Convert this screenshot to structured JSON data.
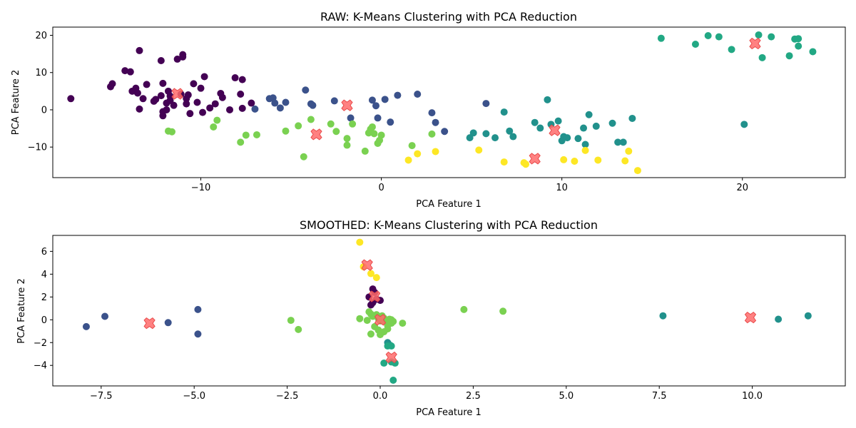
{
  "chart_data": [
    {
      "type": "scatter",
      "title": "RAW: K-Means Clustering with PCA Reduction",
      "xlabel": "PCA Feature 1",
      "ylabel": "PCA Feature 2",
      "xlim": [
        -18.2,
        25.7
      ],
      "ylim": [
        -18.2,
        22.2
      ],
      "xticks": [
        -10,
        0,
        10,
        20
      ],
      "xtick_labels": [
        "−10",
        "0",
        "10",
        "20"
      ],
      "yticks": [
        -10,
        0,
        10,
        20
      ],
      "ytick_labels": [
        "−10",
        "0",
        "10",
        "20"
      ],
      "grid": false,
      "series": [
        {
          "color": "#440154",
          "points": [
            [
              -17.2,
              3.0
            ],
            [
              -15.0,
              6.2
            ],
            [
              -14.9,
              7.0
            ],
            [
              -14.2,
              10.5
            ],
            [
              -13.9,
              10.2
            ],
            [
              -13.8,
              5.0
            ],
            [
              -13.6,
              5.8
            ],
            [
              -13.5,
              4.5
            ],
            [
              -13.4,
              0.2
            ],
            [
              -13.4,
              15.9
            ],
            [
              -13.2,
              3.0
            ],
            [
              -13.0,
              6.8
            ],
            [
              -12.6,
              2.3
            ],
            [
              -12.5,
              2.8
            ],
            [
              -12.2,
              3.8
            ],
            [
              -12.2,
              13.2
            ],
            [
              -12.1,
              -1.6
            ],
            [
              -12.1,
              -0.5
            ],
            [
              -12.1,
              7.1
            ],
            [
              -11.9,
              1.8
            ],
            [
              -11.9,
              0.0
            ],
            [
              -11.8,
              5.0
            ],
            [
              -11.7,
              3.7
            ],
            [
              -11.7,
              2.5
            ],
            [
              -11.5,
              1.2
            ],
            [
              -11.3,
              13.6
            ],
            [
              -11.1,
              4.2
            ],
            [
              -11.0,
              14.2
            ],
            [
              -11.0,
              14.8
            ],
            [
              -10.8,
              1.6
            ],
            [
              -10.8,
              3.0
            ],
            [
              -10.7,
              4.0
            ],
            [
              -10.6,
              -1.0
            ],
            [
              -10.4,
              7.0
            ],
            [
              -10.2,
              2.0
            ],
            [
              -10.0,
              5.8
            ],
            [
              -9.9,
              -0.7
            ],
            [
              -9.8,
              8.9
            ],
            [
              -9.5,
              0.5
            ],
            [
              -9.2,
              1.6
            ],
            [
              -8.9,
              4.4
            ],
            [
              -8.8,
              3.3
            ],
            [
              -8.4,
              0.0
            ],
            [
              -8.1,
              8.6
            ],
            [
              -7.8,
              4.2
            ],
            [
              -7.7,
              8.1
            ],
            [
              -7.7,
              0.4
            ],
            [
              -7.2,
              1.8
            ]
          ]
        },
        {
          "color": "#3b528b",
          "points": [
            [
              -7.0,
              0.2
            ],
            [
              -6.2,
              3.0
            ],
            [
              -6.0,
              3.2
            ],
            [
              -5.9,
              1.8
            ],
            [
              -5.6,
              0.5
            ],
            [
              -5.3,
              2.0
            ],
            [
              -4.2,
              5.3
            ],
            [
              -3.9,
              1.6
            ],
            [
              -3.8,
              1.2
            ],
            [
              -2.6,
              2.4
            ],
            [
              -1.7,
              -2.2
            ],
            [
              -0.5,
              2.6
            ],
            [
              -0.3,
              1.1
            ],
            [
              -0.2,
              -2.2
            ],
            [
              0.2,
              2.8
            ],
            [
              0.5,
              -3.3
            ],
            [
              0.9,
              3.9
            ],
            [
              2.0,
              4.2
            ],
            [
              2.8,
              -0.8
            ],
            [
              3.0,
              -3.4
            ],
            [
              3.5,
              -5.8
            ],
            [
              5.8,
              1.7
            ]
          ]
        },
        {
          "color": "#21918c",
          "points": [
            [
              4.9,
              -7.5
            ],
            [
              5.1,
              -6.2
            ],
            [
              5.8,
              -6.4
            ],
            [
              6.3,
              -7.5
            ],
            [
              6.8,
              -0.6
            ],
            [
              7.1,
              -5.7
            ],
            [
              7.3,
              -7.2
            ],
            [
              8.5,
              -3.4
            ],
            [
              8.8,
              -4.9
            ],
            [
              9.2,
              2.7
            ],
            [
              9.4,
              -3.9
            ],
            [
              9.8,
              -3.0
            ],
            [
              10.0,
              -8.3
            ],
            [
              10.1,
              -7.2
            ],
            [
              10.3,
              -7.5
            ],
            [
              10.9,
              -7.7
            ],
            [
              11.2,
              -4.9
            ],
            [
              11.3,
              -9.3
            ],
            [
              11.5,
              -1.3
            ],
            [
              11.9,
              -4.4
            ],
            [
              12.8,
              -3.6
            ],
            [
              13.1,
              -8.7
            ],
            [
              13.4,
              -8.7
            ],
            [
              13.9,
              -2.3
            ],
            [
              20.1,
              -3.9
            ]
          ]
        },
        {
          "color": "#22a884",
          "points": [
            [
              15.5,
              19.2
            ],
            [
              17.4,
              17.6
            ],
            [
              18.1,
              19.9
            ],
            [
              18.7,
              19.6
            ],
            [
              19.4,
              16.2
            ],
            [
              20.9,
              20.1
            ],
            [
              21.1,
              14.0
            ],
            [
              21.6,
              19.6
            ],
            [
              22.6,
              14.5
            ],
            [
              22.9,
              19.0
            ],
            [
              23.1,
              17.1
            ],
            [
              23.1,
              19.1
            ],
            [
              23.9,
              15.6
            ]
          ]
        },
        {
          "color": "#7ad151",
          "points": [
            [
              -11.8,
              -5.7
            ],
            [
              -11.6,
              -5.9
            ],
            [
              -9.3,
              -4.6
            ],
            [
              -9.1,
              -2.8
            ],
            [
              -7.8,
              -8.7
            ],
            [
              -7.5,
              -6.8
            ],
            [
              -6.9,
              -6.7
            ],
            [
              -5.3,
              -5.7
            ],
            [
              -4.6,
              -4.3
            ],
            [
              -4.3,
              -12.6
            ],
            [
              -3.9,
              -2.6
            ],
            [
              -2.8,
              -3.8
            ],
            [
              -2.5,
              -5.8
            ],
            [
              -1.9,
              -7.7
            ],
            [
              -1.9,
              -9.5
            ],
            [
              -1.6,
              -3.8
            ],
            [
              -0.9,
              -11.1
            ],
            [
              -0.7,
              -6.2
            ],
            [
              -0.6,
              -5.2
            ],
            [
              -0.5,
              -4.6
            ],
            [
              -0.4,
              -6.4
            ],
            [
              -0.2,
              -9.0
            ],
            [
              -0.1,
              -8.2
            ],
            [
              0.0,
              -6.8
            ],
            [
              1.7,
              -9.6
            ],
            [
              2.8,
              -6.5
            ]
          ]
        },
        {
          "color": "#fde725",
          "points": [
            [
              1.5,
              -13.5
            ],
            [
              2.0,
              -11.8
            ],
            [
              3.0,
              -11.2
            ],
            [
              5.4,
              -10.8
            ],
            [
              6.8,
              -14.0
            ],
            [
              7.9,
              -14.2
            ],
            [
              8.0,
              -14.6
            ],
            [
              10.1,
              -13.4
            ],
            [
              10.7,
              -13.8
            ],
            [
              11.3,
              -10.9
            ],
            [
              12.0,
              -13.5
            ],
            [
              13.5,
              -13.7
            ],
            [
              13.7,
              -11.1
            ],
            [
              14.2,
              -16.3
            ]
          ]
        }
      ],
      "centroids": {
        "color": "#ff6b6b",
        "marker": "X",
        "points": [
          [
            -11.3,
            4.3
          ],
          [
            -1.9,
            1.2
          ],
          [
            9.6,
            -5.5
          ],
          [
            20.7,
            17.8
          ],
          [
            -3.6,
            -6.6
          ],
          [
            8.5,
            -13.1
          ]
        ]
      }
    },
    {
      "type": "scatter",
      "title": "SMOOTHED: K-Means Clustering with PCA Reduction",
      "xlabel": "PCA Feature 1",
      "ylabel": "PCA Feature 2",
      "xlim": [
        -8.8,
        12.5
      ],
      "ylim": [
        -5.8,
        7.4
      ],
      "xticks": [
        -7.5,
        -5.0,
        -2.5,
        0.0,
        2.5,
        5.0,
        7.5,
        10.0
      ],
      "xtick_labels": [
        "−7.5",
        "−5.0",
        "−2.5",
        "0.0",
        "2.5",
        "5.0",
        "7.5",
        "10.0"
      ],
      "yticks": [
        -4,
        -2,
        0,
        2,
        4,
        6
      ],
      "ytick_labels": [
        "−4",
        "−2",
        "0",
        "2",
        "4",
        "6"
      ],
      "grid": false,
      "series": [
        {
          "color": "#440154",
          "points": [
            [
              -0.2,
              2.7
            ],
            [
              -0.15,
              2.4
            ],
            [
              -0.3,
              2.0
            ],
            [
              -0.1,
              1.8
            ],
            [
              -0.2,
              1.5
            ],
            [
              0.0,
              1.7
            ],
            [
              -0.25,
              1.3
            ]
          ]
        },
        {
          "color": "#3b528b",
          "points": [
            [
              -7.9,
              -0.6
            ],
            [
              -7.4,
              0.3
            ],
            [
              -5.7,
              -0.25
            ],
            [
              -4.9,
              0.9
            ],
            [
              -4.9,
              -1.25
            ]
          ]
        },
        {
          "color": "#21918c",
          "points": [
            [
              7.6,
              0.35
            ],
            [
              10.7,
              0.05
            ],
            [
              11.5,
              0.35
            ],
            [
              0.2,
              -2.0
            ],
            [
              0.25,
              -2.2
            ]
          ]
        },
        {
          "color": "#22a884",
          "points": [
            [
              0.1,
              -3.8
            ],
            [
              0.3,
              -3.7
            ],
            [
              0.4,
              -3.8
            ],
            [
              0.35,
              -5.3
            ],
            [
              0.3,
              -2.3
            ],
            [
              0.2,
              -2.3
            ]
          ]
        },
        {
          "color": "#7ad151",
          "points": [
            [
              -2.4,
              -0.05
            ],
            [
              -2.2,
              -0.85
            ],
            [
              -0.55,
              0.1
            ],
            [
              -0.35,
              -0.05
            ],
            [
              -0.3,
              0.7
            ],
            [
              -0.25,
              0.5
            ],
            [
              -0.2,
              0.3
            ],
            [
              -0.1,
              0.45
            ],
            [
              -0.05,
              0.1
            ],
            [
              0.0,
              -0.1
            ],
            [
              0.05,
              0.35
            ],
            [
              0.1,
              0.15
            ],
            [
              0.15,
              -0.2
            ],
            [
              0.2,
              -0.5
            ],
            [
              0.25,
              0.05
            ],
            [
              0.3,
              -0.3
            ],
            [
              0.35,
              -0.15
            ],
            [
              -0.15,
              -0.6
            ],
            [
              -0.05,
              -0.9
            ],
            [
              0.0,
              -1.3
            ],
            [
              0.1,
              -1.05
            ],
            [
              0.2,
              -0.8
            ],
            [
              -0.25,
              -1.25
            ],
            [
              0.6,
              -0.3
            ],
            [
              0.3,
              0.0
            ],
            [
              2.25,
              0.9
            ],
            [
              3.3,
              0.75
            ]
          ]
        },
        {
          "color": "#fde725",
          "points": [
            [
              -0.55,
              6.8
            ],
            [
              -0.45,
              4.65
            ],
            [
              -0.25,
              4.05
            ],
            [
              -0.1,
              3.7
            ]
          ]
        }
      ],
      "centroids": {
        "color": "#ff6b6b",
        "marker": "X",
        "points": [
          [
            -0.35,
            4.8
          ],
          [
            -0.15,
            2.05
          ],
          [
            0.0,
            0.0
          ],
          [
            0.3,
            -3.3
          ],
          [
            -6.2,
            -0.3
          ],
          [
            9.95,
            0.2
          ]
        ]
      }
    }
  ]
}
